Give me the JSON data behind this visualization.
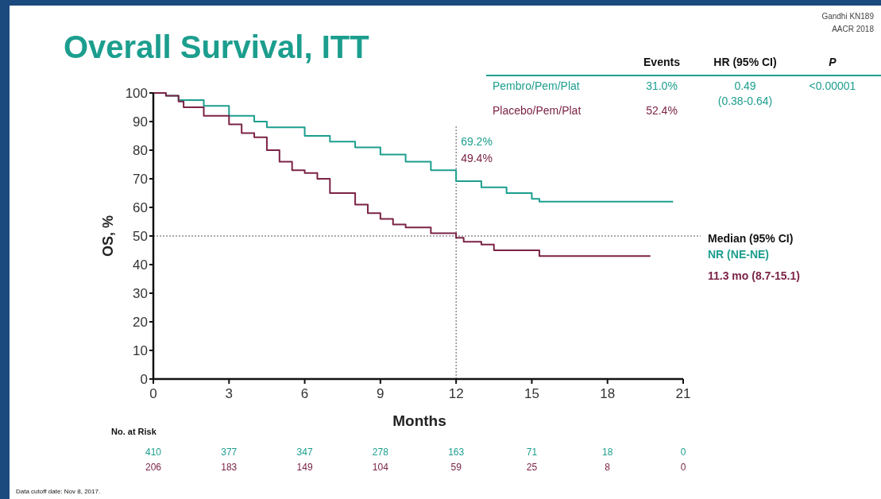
{
  "chart_data": {
    "type": "step",
    "title": "Overall Survival, ITT",
    "xlabel": "Months",
    "ylabel": "OS, %",
    "xlim": [
      0,
      21
    ],
    "xticks": [
      0,
      3,
      6,
      9,
      12,
      15,
      18,
      21
    ],
    "ylim": [
      0,
      100
    ],
    "yticks": [
      0,
      10,
      20,
      30,
      40,
      50,
      60,
      70,
      80,
      90,
      100
    ],
    "grid": false,
    "legend": "top right",
    "marker": "none",
    "line_style": "solid",
    "series": [
      {
        "name": "Pembro/Pem/Plat",
        "color": "#1c9e8e",
        "x": [
          0,
          0.5,
          1,
          2,
          3,
          4,
          4.5,
          6,
          7,
          8,
          9,
          10,
          11,
          12,
          13,
          14,
          15,
          15.3,
          20.6
        ],
        "values": [
          100,
          99,
          97.5,
          95.5,
          92,
          90,
          88,
          85,
          83,
          81,
          78.5,
          76,
          73,
          69.2,
          67,
          65,
          63,
          62,
          62
        ]
      },
      {
        "name": "Placebo/Pem/Plat",
        "color": "#7b2346",
        "x": [
          0,
          0.5,
          1,
          1.2,
          2,
          3,
          3.5,
          4,
          4.5,
          5,
          5.5,
          6,
          6.5,
          7,
          8,
          8.5,
          9,
          9.5,
          10,
          11,
          12,
          12.3,
          13,
          13.5,
          15.3,
          19.7
        ],
        "values": [
          100,
          99,
          97,
          95,
          92,
          89,
          86,
          84.5,
          80,
          76,
          73,
          72,
          70,
          65,
          61,
          58,
          56,
          54,
          53,
          51,
          49.4,
          48,
          47,
          45,
          43,
          43
        ]
      }
    ],
    "ref_lines": [
      {
        "axis": "y",
        "value": 50,
        "line_style": "dotted",
        "color": "#555555"
      },
      {
        "axis": "x",
        "value": 12,
        "line_style": "dotted",
        "color": "#555555"
      }
    ],
    "annotations": [
      "69.2%",
      "49.4%",
      "Gandhi KN189",
      "AACR 2018",
      "Events",
      "HR (95% CI)",
      "P",
      "31.0%",
      "52.4%",
      "0.49",
      "(0.38-0.64)",
      "<0.00001",
      "Median (95% CI)",
      "NR (NE-NE)",
      "11.3 mo (8.7-15.1)",
      "No. at Risk",
      "410",
      "377",
      "347",
      "278",
      "163",
      "71",
      "18",
      "0",
      "206",
      "183",
      "149",
      "104",
      "59",
      "25",
      "8",
      "0",
      "Data cutoff date: Nov 8, 2017."
    ]
  }
}
